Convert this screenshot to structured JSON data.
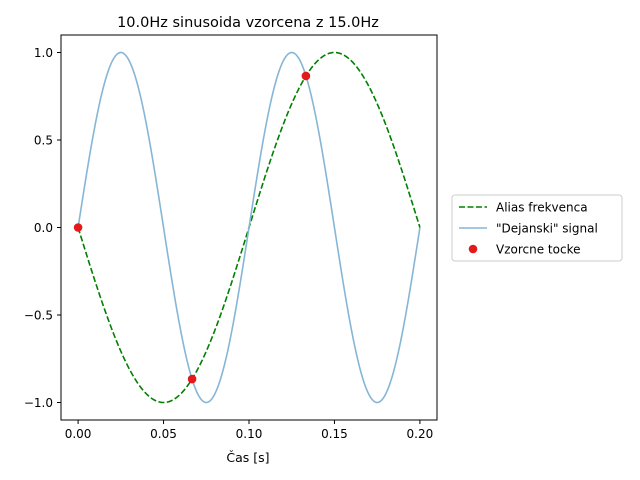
{
  "chart_data": {
    "type": "line",
    "title": "10.0Hz sinusoida vzorcena z 15.0Hz",
    "xlabel": "Čas [s]",
    "ylabel": "",
    "xlim": [
      -0.01,
      0.21
    ],
    "ylim": [
      -1.1,
      1.1
    ],
    "xticks": [
      0.0,
      0.05,
      0.1,
      0.15,
      0.2
    ],
    "xtick_labels": [
      "0.00",
      "0.05",
      "0.10",
      "0.15",
      "0.20"
    ],
    "yticks": [
      -1.0,
      -0.5,
      0.0,
      0.5,
      1.0
    ],
    "ytick_labels": [
      "−1.0",
      "−0.5",
      "0.0",
      "0.5",
      "1.0"
    ],
    "grid": false,
    "legend_position": "outside-right",
    "series": [
      {
        "name": "Alias frekvenca",
        "kind": "line",
        "style": "dashed",
        "color": "#008000",
        "function": "-sin(2*pi*5*t)",
        "frequency_hz": -5.0,
        "t_range": [
          0.0,
          0.2
        ]
      },
      {
        "name": "\"Dejanski\" signal",
        "kind": "line",
        "style": "solid",
        "color": "#86b6d6",
        "function": "sin(2*pi*10*t)",
        "frequency_hz": 10.0,
        "t_range": [
          0.0,
          0.2
        ]
      },
      {
        "name": "Vzorcne tocke",
        "kind": "scatter",
        "color": "#e31a1c",
        "x": [
          0.0,
          0.0667,
          0.1333
        ],
        "y": [
          0.0,
          -0.866,
          0.866
        ]
      }
    ]
  }
}
